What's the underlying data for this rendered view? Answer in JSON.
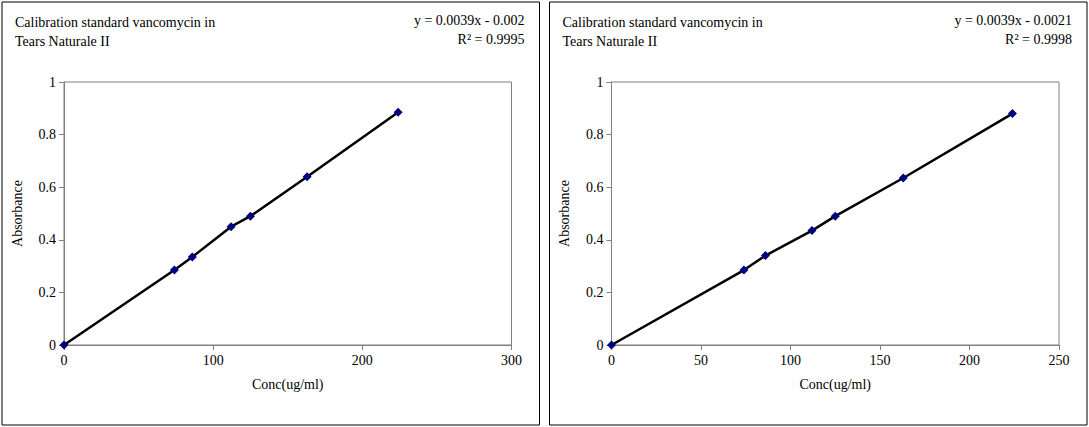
{
  "chart_data": [
    {
      "type": "line",
      "title": "Calibration standard vancomycin in Tears Naturale II",
      "annotations": [
        "y = 0.0039x - 0.002",
        "R² = 0.9995"
      ],
      "x_label": "Conc(ug/ml)",
      "y_label": "Absorbance",
      "x": [
        0,
        74,
        86,
        112,
        125,
        163,
        224
      ],
      "values": [
        0,
        0.285,
        0.335,
        0.45,
        0.49,
        0.64,
        0.885
      ],
      "color": "#000080",
      "marker": "diamond",
      "line_style": "solid",
      "xlim": [
        0,
        300
      ],
      "xticks": [
        0,
        100,
        200,
        300
      ],
      "ylim": [
        0,
        1
      ],
      "yticks": [
        0,
        0.2,
        0.4,
        0.6,
        0.8,
        1
      ],
      "grid": false
    },
    {
      "type": "line",
      "title": "Calibration standard vancomycin in Tears Naturale II",
      "annotations": [
        "y = 0.0039x - 0.0021",
        "R² = 0.9998"
      ],
      "x_label": "Conc(ug/ml)",
      "y_label": "Absorbance",
      "x": [
        0,
        74,
        86,
        112,
        125,
        163,
        224
      ],
      "values": [
        0,
        0.285,
        0.34,
        0.435,
        0.49,
        0.635,
        0.88
      ],
      "color": "#000080",
      "marker": "diamond",
      "line_style": "solid",
      "xlim": [
        0,
        250
      ],
      "xticks": [
        0,
        50,
        100,
        150,
        200,
        250
      ],
      "ylim": [
        0,
        1
      ],
      "yticks": [
        0,
        0.2,
        0.4,
        0.6,
        0.8,
        1
      ],
      "grid": false
    }
  ]
}
